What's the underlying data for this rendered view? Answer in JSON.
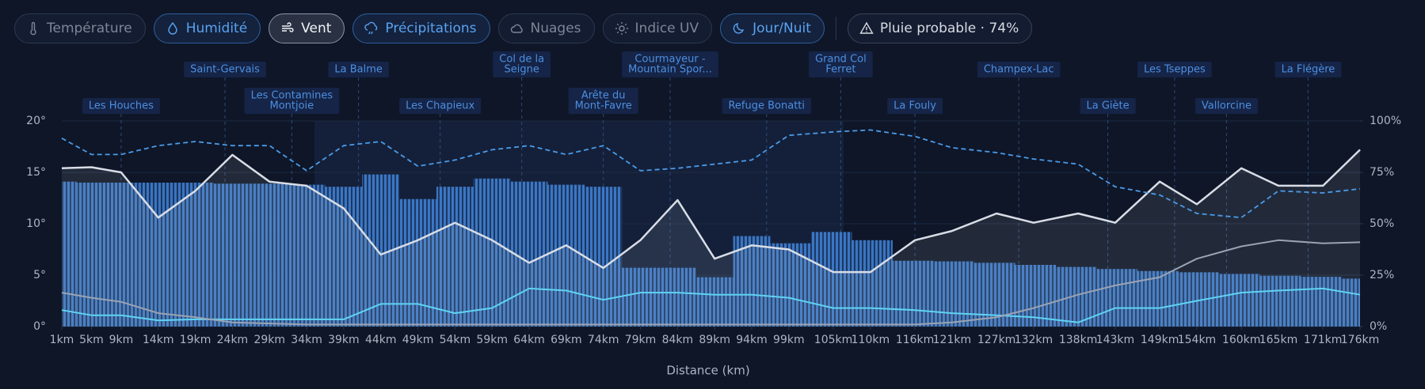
{
  "toolbar": {
    "buttons": [
      "Température",
      "Humidité",
      "Vent",
      "Précipitations",
      "Nuages",
      "Indice UV",
      "Jour/Nuit"
    ],
    "alert": "Pluie probable · 74%"
  },
  "chart_data": {
    "type": "combo",
    "x_label": "Distance (km)",
    "x": [
      1,
      5,
      9,
      14,
      19,
      24,
      29,
      34,
      39,
      44,
      49,
      54,
      59,
      64,
      69,
      74,
      79,
      84,
      89,
      94,
      99,
      105,
      110,
      116,
      121,
      127,
      132,
      138,
      143,
      149,
      154,
      160,
      165,
      171,
      176
    ],
    "xlim": [
      1,
      176
    ],
    "xticks": [
      {
        "value": 1,
        "label": "1km"
      },
      {
        "value": 5,
        "label": "5km"
      },
      {
        "value": 9,
        "label": "9km"
      },
      {
        "value": 14,
        "label": "14km"
      },
      {
        "value": 19,
        "label": "19km"
      },
      {
        "value": 24,
        "label": "24km"
      },
      {
        "value": 29,
        "label": "29km"
      },
      {
        "value": 34,
        "label": "34km"
      },
      {
        "value": 39,
        "label": "39km"
      },
      {
        "value": 44,
        "label": "44km"
      },
      {
        "value": 49,
        "label": "49km"
      },
      {
        "value": 54,
        "label": "54km"
      },
      {
        "value": 59,
        "label": "59km"
      },
      {
        "value": 64,
        "label": "64km"
      },
      {
        "value": 69,
        "label": "69km"
      },
      {
        "value": 74,
        "label": "74km"
      },
      {
        "value": 79,
        "label": "79km"
      },
      {
        "value": 84,
        "label": "84km"
      },
      {
        "value": 89,
        "label": "89km"
      },
      {
        "value": 94,
        "label": "94km"
      },
      {
        "value": 99,
        "label": "99km"
      },
      {
        "value": 105,
        "label": "105km"
      },
      {
        "value": 110,
        "label": "110km"
      },
      {
        "value": 116,
        "label": "116km"
      },
      {
        "value": 121,
        "label": "121km"
      },
      {
        "value": 127,
        "label": "127km"
      },
      {
        "value": 132,
        "label": "132km"
      },
      {
        "value": 138,
        "label": "138km"
      },
      {
        "value": 143,
        "label": "143km"
      },
      {
        "value": 149,
        "label": "149km"
      },
      {
        "value": 154,
        "label": "154km"
      },
      {
        "value": 160,
        "label": "160km"
      },
      {
        "value": 165,
        "label": "165km"
      },
      {
        "value": 171,
        "label": "171km"
      },
      {
        "value": 176,
        "label": "176km"
      }
    ],
    "ylim": [
      0,
      20
    ],
    "yticks": [
      {
        "value": 0,
        "label": "0°"
      },
      {
        "value": 5,
        "label": "5°"
      },
      {
        "value": 10,
        "label": "10°"
      },
      {
        "value": 15,
        "label": "15°"
      },
      {
        "value": 20,
        "label": "20°"
      }
    ],
    "y2lim": [
      0,
      100
    ],
    "y2ticks": [
      {
        "value": 0,
        "label": "0%"
      },
      {
        "value": 25,
        "label": "25%"
      },
      {
        "value": 50,
        "label": "50%"
      },
      {
        "value": 75,
        "label": "75%"
      },
      {
        "value": 100,
        "label": "100%"
      }
    ],
    "series": [
      {
        "name": "Précipitations",
        "type": "bar",
        "axis": "y2",
        "color": "#3d7fd0",
        "values": [
          70.5,
          70,
          70,
          70,
          70,
          69.5,
          69.5,
          69,
          68,
          74,
          62,
          68,
          72,
          70.5,
          69,
          68,
          28.6,
          28.6,
          24,
          44,
          40.5,
          46,
          42,
          32,
          31.7,
          31,
          30,
          29,
          28,
          27,
          26.4,
          25.6,
          24.7,
          24.2,
          23.3
        ]
      },
      {
        "name": "Vent",
        "type": "line",
        "color": "#d9dde6",
        "area": true,
        "values": [
          15.4,
          15.5,
          15,
          10.6,
          13.2,
          16.7,
          14.1,
          13.7,
          11.5,
          7,
          8.4,
          10.1,
          8.4,
          6.2,
          7.9,
          5.7,
          8.4,
          12.3,
          6.6,
          7.9,
          7.5,
          5.3,
          5.3,
          8.4,
          9.3,
          11,
          10.1,
          11,
          10.1,
          14.1,
          11.9,
          15.4,
          13.7,
          13.7,
          17.2
        ]
      },
      {
        "name": "Humidité",
        "type": "line",
        "axis": "y2",
        "color": "#4a9be8",
        "dashed": true,
        "values": [
          91.6,
          83.7,
          83.7,
          88,
          90,
          88,
          88,
          75.8,
          88,
          90,
          78,
          81,
          86,
          88,
          83.7,
          88,
          75.8,
          77,
          79,
          81,
          93,
          94.7,
          95.6,
          92.5,
          87,
          84.6,
          81.5,
          79,
          68,
          64,
          55,
          53,
          66,
          65,
          67
        ]
      },
      {
        "type": "line",
        "color": "#5fd3f3",
        "values": [
          1.6,
          1.1,
          1.1,
          0.6,
          0.7,
          0.7,
          0.7,
          0.7,
          0.7,
          2.2,
          2.2,
          1.3,
          1.8,
          3.7,
          3.5,
          2.6,
          3.3,
          3.3,
          3.1,
          3.1,
          2.8,
          1.8,
          1.8,
          1.6,
          1.3,
          1.1,
          0.9,
          0.4,
          1.8,
          1.8,
          2.5,
          3.3,
          3.5,
          3.7,
          3.1
        ]
      },
      {
        "type": "line",
        "color": "#9aa3b2",
        "values": [
          3.3,
          2.8,
          2.4,
          1.3,
          0.9,
          0.4,
          0.3,
          0.2,
          0.2,
          0.2,
          0.2,
          0.2,
          0.2,
          0.2,
          0.2,
          0.2,
          0.2,
          0.2,
          0.2,
          0.2,
          0.2,
          0.2,
          0.2,
          0.2,
          0.4,
          0.9,
          1.8,
          3.1,
          4,
          4.8,
          6.6,
          7.8,
          8.4,
          8.1,
          8.2
        ]
      }
    ],
    "annotations": [
      {
        "lines": [
          "Les Houches"
        ],
        "x": 9
      },
      {
        "lines": [
          "Saint-Gervais"
        ],
        "x": 23
      },
      {
        "lines": [
          "Les Contamines",
          "Montjoie"
        ],
        "x": 32
      },
      {
        "lines": [
          "La Balme"
        ],
        "x": 41
      },
      {
        "lines": [
          "Les Chapieux"
        ],
        "x": 52
      },
      {
        "lines": [
          "Col de la",
          "Seigne"
        ],
        "x": 63
      },
      {
        "lines": [
          "Arête du",
          "Mont-Favre"
        ],
        "x": 74
      },
      {
        "lines": [
          "Courmayeur -",
          "Mountain Spor..."
        ],
        "x": 83
      },
      {
        "lines": [
          "Refuge Bonatti"
        ],
        "x": 96
      },
      {
        "lines": [
          "Grand Col",
          "Ferret"
        ],
        "x": 106
      },
      {
        "lines": [
          "La Fouly"
        ],
        "x": 116
      },
      {
        "lines": [
          "Champex-Lac"
        ],
        "x": 130
      },
      {
        "lines": [
          "La Giète"
        ],
        "x": 142
      },
      {
        "lines": [
          "Les Tseppes"
        ],
        "x": 151
      },
      {
        "lines": [
          "Vallorcine"
        ],
        "x": 158
      },
      {
        "lines": [
          "La Flégère"
        ],
        "x": 169
      }
    ],
    "grid": true
  }
}
